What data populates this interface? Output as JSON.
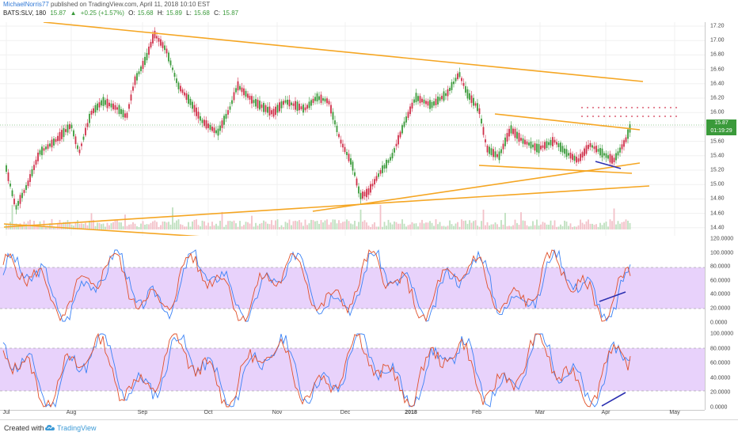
{
  "header": {
    "author": "MichaelNorris77",
    "published": "published on TradingView.com, April 11, 2018 10:10 EST",
    "symbol": "BATS:SLV, 180",
    "last": "15.87",
    "change": "+0.25 (+1.57%)",
    "open_label": "O:",
    "open": "15.68",
    "high_label": "H:",
    "high": "15.89",
    "low_label": "L:",
    "low": "15.68",
    "close_label": "C:",
    "close": "15.87",
    "up_triangle": "▲"
  },
  "price_axis": {
    "ticks": [
      "17.20",
      "17.00",
      "16.80",
      "16.60",
      "16.40",
      "16.20",
      "16.00",
      "15.80",
      "15.60",
      "15.40",
      "15.20",
      "15.00",
      "14.80",
      "14.60",
      "14.40"
    ],
    "last_price_badge": "15.87",
    "countdown_badge": "01:19:29",
    "badge_color": "#3a9a3a"
  },
  "osc1_axis": {
    "ticks": [
      "120.0000",
      "100.0000",
      "80.0000",
      "60.0000",
      "40.0000",
      "20.0000",
      "0.0000"
    ]
  },
  "osc2_axis": {
    "ticks": [
      "100.0000",
      "80.0000",
      "60.0000",
      "40.0000",
      "20.0000",
      "0.0000"
    ]
  },
  "time_axis": {
    "labels": [
      "Jul",
      "Aug",
      "Sep",
      "Oct",
      "Nov",
      "Dec",
      "2018",
      "Feb",
      "Mar",
      "Apr",
      "May"
    ]
  },
  "footer": {
    "created_with": "Created with",
    "brand": "TradingView"
  },
  "colors": {
    "up": "#3a9a3a",
    "down": "#d0304a",
    "trendline": "#f5a623",
    "blue_line": "#2b2fb0",
    "band": "#e8d2fb"
  }
}
